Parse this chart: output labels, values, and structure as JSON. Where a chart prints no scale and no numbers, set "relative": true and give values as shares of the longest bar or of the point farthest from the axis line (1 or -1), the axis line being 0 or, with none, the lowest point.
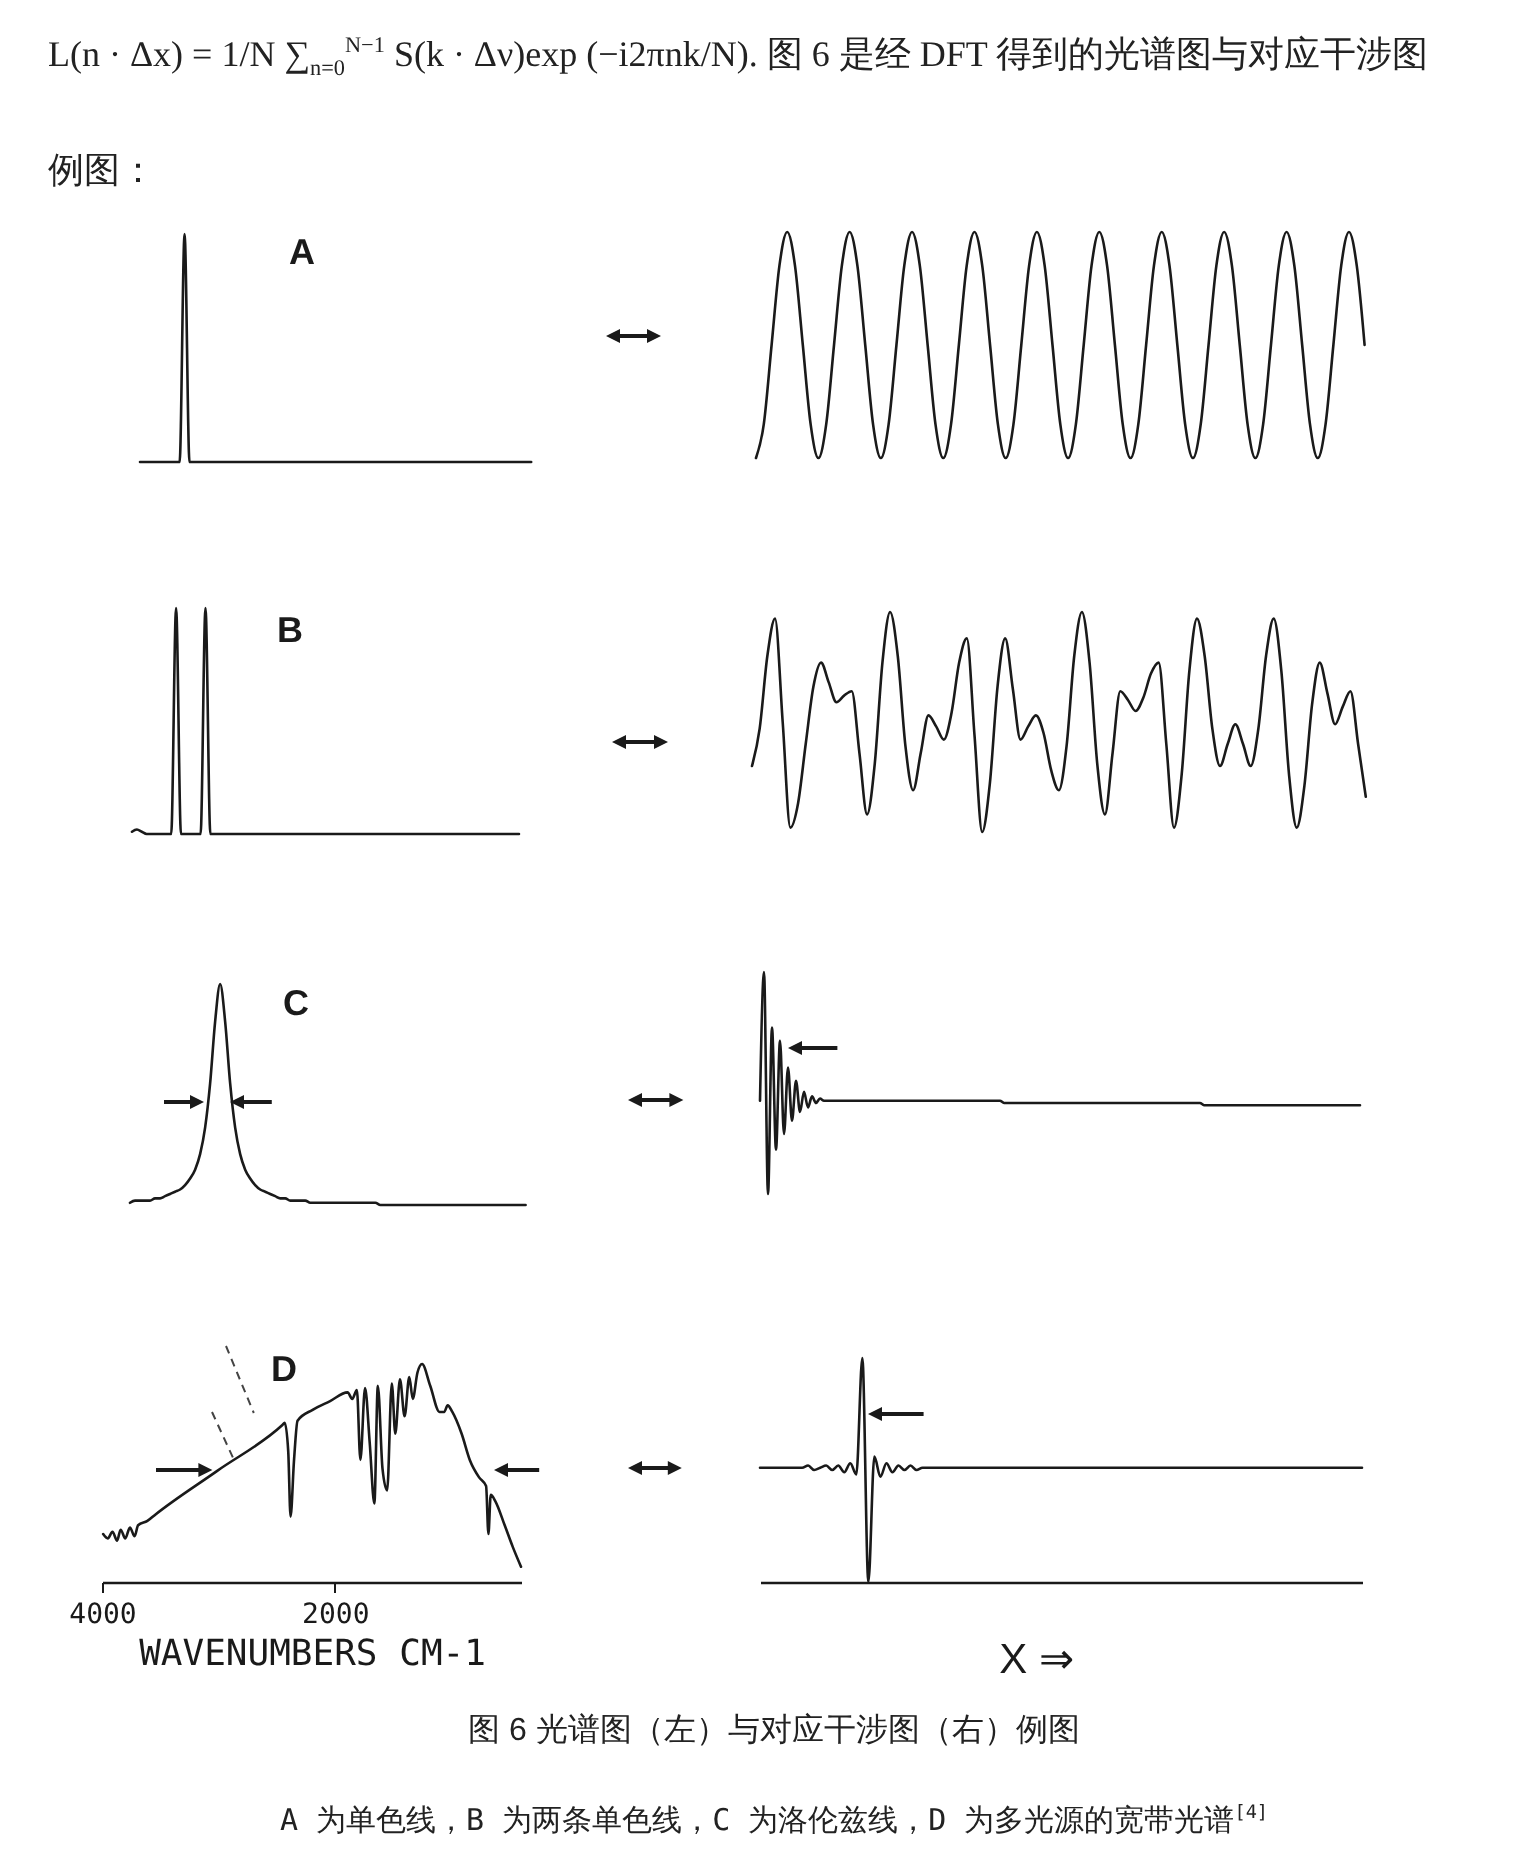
{
  "chart_data": [
    {
      "type": "line",
      "relative": true,
      "categories": [
        null,
        null,
        null,
        null,
        null,
        null,
        null,
        null,
        null,
        null,
        null,
        null,
        null,
        null,
        null,
        null,
        null,
        null,
        null,
        null,
        null,
        null,
        null,
        null,
        null,
        null,
        null,
        null,
        null,
        null,
        null,
        null,
        null,
        null,
        null,
        null,
        null,
        null,
        null,
        null,
        null,
        null,
        null,
        null,
        null,
        null,
        null,
        null,
        null,
        null,
        null,
        null,
        null,
        null,
        null,
        null,
        null,
        null,
        null,
        null,
        null,
        null,
        null,
        null,
        null,
        null,
        null,
        null,
        null,
        null,
        null,
        null,
        null,
        null,
        null,
        null,
        null,
        null,
        null,
        null
      ],
      "series": [
        {
          "color": "#1a1a1a",
          "values": [
            0,
            0,
            0,
            0,
            0,
            0,
            0,
            0,
            0,
            1,
            0,
            0,
            0,
            0,
            0,
            0,
            0,
            0,
            0,
            0,
            0,
            0,
            0,
            0,
            0,
            0,
            0,
            0,
            0,
            0,
            0,
            0,
            0,
            0,
            0,
            0,
            0,
            0,
            0,
            0,
            0,
            0,
            0,
            0,
            0,
            0,
            0,
            0,
            0,
            0,
            0,
            0,
            0,
            0,
            0,
            0,
            0,
            0,
            0,
            0,
            0,
            0,
            0,
            0,
            0,
            0,
            0,
            0,
            0,
            0,
            0,
            0,
            0,
            0,
            0,
            0,
            0,
            0,
            0,
            0
          ]
        }
      ],
      "annotations": [
        "L(n · Δx) = 1/N ∑$_{n=0}$$^{N−1}$ S(k · Δν)exp (−i2πnk/N). 图 6 是经 DFT 得到的光谱图与对应干涉图例图：",
        "A"
      ]
    },
    {
      "type": "line",
      "relative": true,
      "categories": [
        null,
        null,
        null,
        null,
        null,
        null,
        null,
        null,
        null,
        null,
        null,
        null,
        null,
        null,
        null,
        null,
        null,
        null,
        null,
        null,
        null,
        null,
        null,
        null,
        null,
        null,
        null,
        null,
        null,
        null,
        null,
        null,
        null,
        null,
        null,
        null,
        null,
        null,
        null,
        null,
        null,
        null,
        null,
        null,
        null,
        null,
        null,
        null,
        null,
        null,
        null,
        null,
        null,
        null,
        null,
        null,
        null,
        null,
        null,
        null,
        null,
        null,
        null,
        null,
        null,
        null,
        null,
        null,
        null,
        null,
        null,
        null,
        null,
        null,
        null,
        null,
        null,
        null,
        null
      ],
      "series": [
        {
          "color": "#1a1a1a",
          "values": [
            0,
            0.15,
            0.5,
            0.85,
            1,
            0.85,
            0.5,
            0.15,
            0,
            0.15,
            0.5,
            0.85,
            1,
            0.85,
            0.5,
            0.15,
            0,
            0.15,
            0.5,
            0.85,
            1,
            0.85,
            0.5,
            0.15,
            0,
            0.15,
            0.5,
            0.85,
            1,
            0.85,
            0.5,
            0.15,
            0,
            0.15,
            0.5,
            0.85,
            1,
            0.85,
            0.5,
            0.15,
            0,
            0.15,
            0.5,
            0.85,
            1,
            0.85,
            0.5,
            0.15,
            0,
            0.15,
            0.5,
            0.85,
            1,
            0.85,
            0.5,
            0.15,
            0,
            0.15,
            0.5,
            0.85,
            1,
            0.85,
            0.5,
            0.15,
            0,
            0.15,
            0.5,
            0.85,
            1,
            0.85,
            0.5,
            0.15,
            0,
            0.15,
            0.5,
            0.85,
            1,
            0.85,
            0.5
          ]
        }
      ]
    },
    {
      "type": "line",
      "relative": true,
      "categories": [
        null,
        null,
        null,
        null,
        null,
        null,
        null,
        null,
        null,
        null,
        null,
        null,
        null,
        null,
        null,
        null,
        null,
        null,
        null,
        null,
        null,
        null,
        null,
        null,
        null,
        null,
        null,
        null,
        null,
        null,
        null,
        null,
        null,
        null,
        null,
        null,
        null,
        null,
        null,
        null,
        null,
        null,
        null,
        null,
        null,
        null,
        null,
        null,
        null,
        null,
        null,
        null,
        null,
        null,
        null,
        null,
        null,
        null,
        null,
        null,
        null,
        null,
        null,
        null,
        null,
        null,
        null,
        null,
        null,
        null,
        null,
        null,
        null,
        null,
        null,
        null,
        null,
        null,
        null,
        null
      ],
      "series": [
        {
          "color": "#1a1a1a",
          "values": [
            0.01,
            0.02,
            0.01,
            0,
            0,
            0,
            0,
            0,
            0,
            1,
            0,
            0,
            0,
            0,
            0,
            1,
            0,
            0,
            0,
            0,
            0,
            0,
            0,
            0,
            0,
            0,
            0,
            0,
            0,
            0,
            0,
            0,
            0,
            0,
            0,
            0,
            0,
            0,
            0,
            0,
            0,
            0,
            0,
            0,
            0,
            0,
            0,
            0,
            0,
            0,
            0,
            0,
            0,
            0,
            0,
            0,
            0,
            0,
            0,
            0,
            0,
            0,
            0,
            0,
            0,
            0,
            0,
            0,
            0,
            0,
            0,
            0,
            0,
            0,
            0,
            0,
            0,
            0,
            0,
            0
          ]
        }
      ],
      "annotations": [
        "B"
      ]
    },
    {
      "type": "line",
      "relative": true,
      "categories": [
        null,
        null,
        null,
        null,
        null,
        null,
        null,
        null,
        null,
        null,
        null,
        null,
        null,
        null,
        null,
        null,
        null,
        null,
        null,
        null,
        null,
        null,
        null,
        null,
        null,
        null,
        null,
        null,
        null,
        null,
        null,
        null,
        null,
        null,
        null,
        null,
        null,
        null,
        null,
        null,
        null,
        null,
        null,
        null,
        null,
        null,
        null,
        null,
        null,
        null,
        null,
        null,
        null,
        null,
        null,
        null,
        null,
        null,
        null,
        null,
        null,
        null,
        null,
        null,
        null,
        null,
        null,
        null,
        null,
        null,
        null,
        null,
        null,
        null,
        null,
        null,
        null,
        null,
        null,
        null,
        null
      ],
      "series": [
        {
          "color": "#1a1a1a",
          "values": [
            0.3,
            0.47,
            0.8,
            0.97,
            0.5,
            0.02,
            0.13,
            0.4,
            0.66,
            0.77,
            0.68,
            0.59,
            0.62,
            0.64,
            0.36,
            0.08,
            0.31,
            0.77,
            1,
            0.8,
            0.39,
            0.19,
            0.36,
            0.53,
            0.48,
            0.42,
            0.54,
            0.77,
            0.88,
            0.44,
            0,
            0.22,
            0.66,
            0.88,
            0.65,
            0.42,
            0.48,
            0.53,
            0.45,
            0.28,
            0.19,
            0.39,
            0.8,
            1,
            0.77,
            0.31,
            0.08,
            0.36,
            0.64,
            0.6,
            0.55,
            0.61,
            0.72,
            0.77,
            0.4,
            0.02,
            0.26,
            0.73,
            0.97,
            0.8,
            0.47,
            0.3,
            0.4,
            0.49,
            0.4,
            0.3,
            0.47,
            0.8,
            0.97,
            0.73,
            0.26,
            0.02,
            0.21,
            0.58,
            0.77,
            0.63,
            0.49,
            0.57,
            0.64,
            0.4,
            0.16
          ]
        }
      ]
    },
    {
      "type": "line",
      "relative": true,
      "categories": [
        null,
        null,
        null,
        null,
        null,
        null,
        null,
        null,
        null,
        null,
        null,
        null,
        null,
        null,
        null,
        null,
        null,
        null,
        null,
        null,
        null,
        null,
        null,
        null,
        null,
        null,
        null,
        null,
        null,
        null,
        null,
        null,
        null,
        null,
        null,
        null,
        null,
        null,
        null,
        null,
        null,
        null,
        null,
        null,
        null,
        null,
        null,
        null,
        null,
        null,
        null,
        null,
        null,
        null,
        null,
        null,
        null,
        null,
        null,
        null,
        null,
        null,
        null,
        null,
        null,
        null,
        null,
        null,
        null,
        null,
        null,
        null,
        null,
        null,
        null,
        null,
        null,
        null,
        null,
        null
      ],
      "series": [
        {
          "color": "#1a1a1a",
          "values": [
            0.01,
            0.02,
            0.02,
            0.02,
            0.02,
            0.03,
            0.03,
            0.04,
            0.05,
            0.06,
            0.07,
            0.09,
            0.12,
            0.16,
            0.23,
            0.35,
            0.55,
            0.83,
            1,
            0.83,
            0.55,
            0.35,
            0.23,
            0.16,
            0.12,
            0.09,
            0.07,
            0.06,
            0.05,
            0.04,
            0.03,
            0.03,
            0.02,
            0.02,
            0.02,
            0.02,
            0.01,
            0.01,
            0.01,
            0.01,
            0.01,
            0.01,
            0.01,
            0.01,
            0.01,
            0.01,
            0.01,
            0.01,
            0.01,
            0.01,
            0,
            0,
            0,
            0,
            0,
            0,
            0,
            0,
            0,
            0,
            0,
            0,
            0,
            0,
            0,
            0,
            0,
            0,
            0,
            0,
            0,
            0,
            0,
            0,
            0,
            0,
            0,
            0,
            0,
            0
          ]
        }
      ],
      "annotations": [
        "C"
      ]
    },
    {
      "type": "line",
      "relative": true,
      "categories": [
        null,
        null,
        null,
        null,
        null,
        null,
        null,
        null,
        null,
        null,
        null,
        null,
        null,
        null,
        null,
        null,
        null,
        null,
        null,
        null,
        null,
        null,
        null,
        null,
        null,
        null,
        null,
        null,
        null,
        null,
        null,
        null,
        null,
        null,
        null,
        null,
        null,
        null,
        null,
        null,
        null,
        null,
        null,
        null,
        null,
        null,
        null,
        null,
        null,
        null,
        null,
        null,
        null,
        null,
        null,
        null,
        null,
        null,
        null,
        null,
        null,
        null,
        null,
        null,
        null,
        null,
        null,
        null,
        null,
        null,
        null,
        null,
        null,
        null,
        null,
        null,
        null,
        null,
        null,
        null,
        null,
        null,
        null,
        null,
        null,
        null,
        null,
        null,
        null,
        null,
        null,
        null,
        null,
        null,
        null,
        null,
        null,
        null,
        null,
        null,
        null,
        null,
        null,
        null,
        null,
        null,
        null,
        null,
        null,
        null,
        null,
        null,
        null,
        null,
        null,
        null,
        null,
        null,
        null,
        null,
        null,
        null,
        null,
        null,
        null,
        null,
        null,
        null,
        null,
        null,
        null,
        null,
        null,
        null,
        null,
        null,
        null,
        null,
        null,
        null,
        null,
        null,
        null,
        null,
        null,
        null,
        null,
        null,
        null,
        null,
        null
      ],
      "series": [
        {
          "color": "#1a1a1a",
          "values": [
            0.42,
            1,
            0,
            0.75,
            0.2,
            0.69,
            0.27,
            0.57,
            0.33,
            0.51,
            0.37,
            0.46,
            0.39,
            0.44,
            0.41,
            0.43,
            0.42,
            0.42,
            0.42,
            0.42,
            0.42,
            0.42,
            0.42,
            0.42,
            0.42,
            0.42,
            0.42,
            0.42,
            0.42,
            0.42,
            0.42,
            0.42,
            0.42,
            0.42,
            0.42,
            0.42,
            0.42,
            0.42,
            0.42,
            0.42,
            0.42,
            0.42,
            0.42,
            0.42,
            0.42,
            0.42,
            0.42,
            0.42,
            0.42,
            0.42,
            0.42,
            0.42,
            0.42,
            0.42,
            0.42,
            0.42,
            0.42,
            0.42,
            0.42,
            0.42,
            0.42,
            0.41,
            0.41,
            0.41,
            0.41,
            0.41,
            0.41,
            0.41,
            0.41,
            0.41,
            0.41,
            0.41,
            0.41,
            0.41,
            0.41,
            0.41,
            0.41,
            0.41,
            0.41,
            0.41,
            0.41,
            0.41,
            0.41,
            0.41,
            0.41,
            0.41,
            0.41,
            0.41,
            0.41,
            0.41,
            0.41,
            0.41,
            0.41,
            0.41,
            0.41,
            0.41,
            0.41,
            0.41,
            0.41,
            0.41,
            0.41,
            0.41,
            0.41,
            0.41,
            0.41,
            0.41,
            0.41,
            0.41,
            0.41,
            0.41,
            0.41,
            0.4,
            0.4,
            0.4,
            0.4,
            0.4,
            0.4,
            0.4,
            0.4,
            0.4,
            0.4,
            0.4,
            0.4,
            0.4,
            0.4,
            0.4,
            0.4,
            0.4,
            0.4,
            0.4,
            0.4,
            0.4,
            0.4,
            0.4,
            0.4,
            0.4,
            0.4,
            0.4,
            0.4,
            0.4,
            0.4,
            0.4,
            0.4,
            0.4,
            0.4,
            0.4,
            0.4,
            0.4,
            0.4,
            0.4,
            0.4
          ]
        }
      ]
    },
    {
      "type": "line",
      "relative": true,
      "x": [
        3990,
        3950,
        3910,
        3870,
        3840,
        3800,
        3760,
        3720,
        3690,
        3610,
        3540,
        3010,
        2450,
        2430,
        2400,
        2380,
        2350,
        2320,
        2190,
        2040,
        1890,
        1850,
        1810,
        1780,
        1740,
        1700,
        1660,
        1630,
        1590,
        1550,
        1510,
        1480,
        1440,
        1400,
        1360,
        1330,
        1290,
        1250,
        1180,
        1100,
        1060,
        1030,
        990,
        910,
        840,
        760,
        700,
        680,
        660,
        620,
        540,
        470,
        400
      ],
      "series": [
        {
          "color": "#1a1a1a",
          "values": [
            0.22,
            0.2,
            0.23,
            0.19,
            0.24,
            0.2,
            0.25,
            0.21,
            0.26,
            0.28,
            0.31,
            0.51,
            0.72,
            0.73,
            0.6,
            0.3,
            0.56,
            0.74,
            0.79,
            0.83,
            0.87,
            0.84,
            0.88,
            0.56,
            0.89,
            0.64,
            0.36,
            0.9,
            0.52,
            0.42,
            0.91,
            0.68,
            0.93,
            0.76,
            0.94,
            0.84,
            0.96,
            1,
            0.9,
            0.78,
            0.78,
            0.81,
            0.78,
            0.68,
            0.56,
            0.48,
            0.44,
            0.22,
            0.4,
            0.37,
            0.26,
            0.16,
            0.07
          ]
        }
      ],
      "xlim": [
        4000,
        400
      ],
      "xticks": [
        4000,
        2000
      ],
      "xlabel": "WAVENUMBERS CM-1",
      "annotations": [
        "D"
      ]
    },
    {
      "type": "line",
      "relative": true,
      "categories": [
        null,
        null,
        null,
        null,
        null,
        null,
        null,
        null,
        null,
        null,
        null,
        null,
        null,
        null,
        null,
        null,
        null,
        null,
        null,
        null,
        null,
        null,
        null,
        null,
        null,
        null,
        null,
        null,
        null,
        null,
        null,
        null,
        null,
        null,
        null,
        null,
        null,
        null,
        null,
        null,
        null,
        null,
        null,
        null,
        null,
        null,
        null,
        null,
        null,
        null,
        null,
        null,
        null,
        null,
        null,
        null,
        null,
        null,
        null,
        null,
        null,
        null,
        null,
        null,
        null,
        null,
        null,
        null,
        null,
        null,
        null,
        null,
        null,
        null,
        null,
        null,
        null,
        null,
        null,
        null,
        null,
        null,
        null,
        null,
        null,
        null,
        null,
        null,
        null,
        null,
        null,
        null,
        null,
        null,
        null,
        null,
        null,
        null,
        null,
        null,
        null
      ],
      "series": [
        {
          "color": "#1a1a1a",
          "values": [
            0.51,
            0.51,
            0.51,
            0.51,
            0.51,
            0.51,
            0.51,
            0.51,
            0.52,
            0.5,
            0.51,
            0.52,
            0.5,
            0.52,
            0.49,
            0.53,
            0.48,
            1,
            0,
            0.56,
            0.47,
            0.53,
            0.49,
            0.52,
            0.5,
            0.52,
            0.5,
            0.51,
            0.51,
            0.51,
            0.51,
            0.51,
            0.51,
            0.51,
            0.51,
            0.51,
            0.51,
            0.51,
            0.51,
            0.51,
            0.51,
            0.51,
            0.51,
            0.51,
            0.51,
            0.51,
            0.51,
            0.51,
            0.51,
            0.51,
            0.51,
            0.51,
            0.51,
            0.51,
            0.51,
            0.51,
            0.51,
            0.51,
            0.51,
            0.51,
            0.51,
            0.51,
            0.51,
            0.51,
            0.51,
            0.51,
            0.51,
            0.51,
            0.51,
            0.51,
            0.51,
            0.51,
            0.51,
            0.51,
            0.51,
            0.51,
            0.51,
            0.51,
            0.51,
            0.51,
            0.51,
            0.51,
            0.51,
            0.51,
            0.51,
            0.51,
            0.51,
            0.51,
            0.51,
            0.51,
            0.51,
            0.51,
            0.51,
            0.51,
            0.51,
            0.51,
            0.51,
            0.51,
            0.51,
            0.51,
            0.51
          ]
        }
      ],
      "xlabel": "X ⇒",
      "annotations": [
        "图 6 光谱图（左）与对应干涉图（右）例图",
        "A 为单色线，B 为两条单色线，C 为洛伦兹线，D 为多光源的宽带光谱$^{[4]}$"
      ]
    }
  ]
}
